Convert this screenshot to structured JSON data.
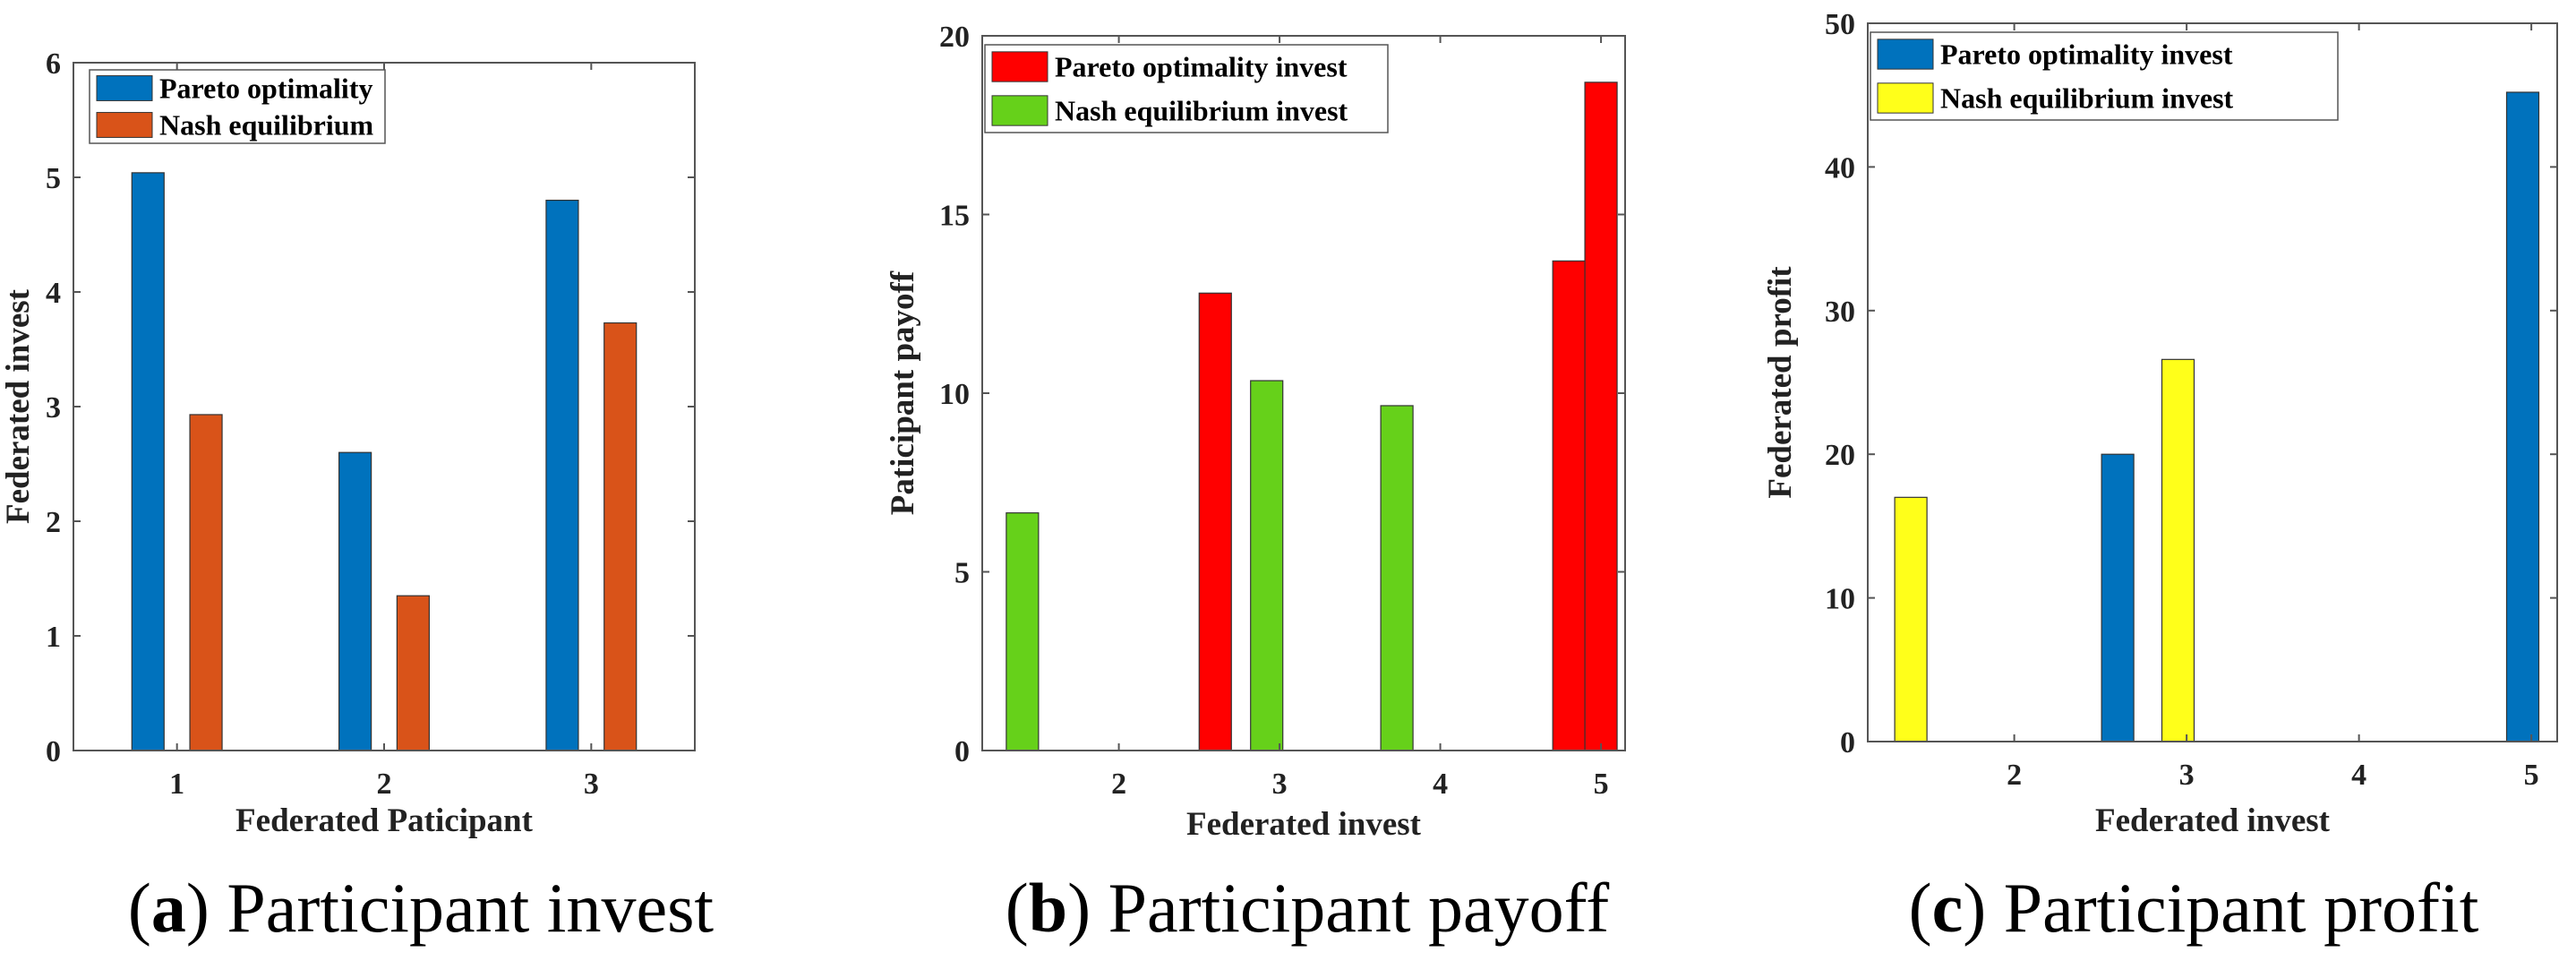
{
  "chart_data": [
    {
      "type": "bar",
      "caption": {
        "open": "(",
        "letter": "a",
        "close": ")",
        "text": " Participant invest"
      },
      "xlabel": "Federated Paticipant",
      "ylabel": "Federated invest",
      "xlim": [
        0.5,
        3.5
      ],
      "ylim": [
        0,
        6
      ],
      "xticks": [
        1,
        2,
        3
      ],
      "yticks": [
        0,
        1,
        2,
        3,
        4,
        5,
        6
      ],
      "grid": false,
      "legend_position": "top-left",
      "series": [
        {
          "name": "Pareto optimality",
          "color": "#0072BD",
          "points": [
            [
              0.86,
              5.04
            ],
            [
              1.86,
              2.6
            ],
            [
              2.86,
              4.8
            ]
          ]
        },
        {
          "name": "Nash equilibrium",
          "color": "#D95319",
          "points": [
            [
              1.14,
              2.93
            ],
            [
              2.14,
              1.35
            ],
            [
              3.14,
              3.73
            ]
          ]
        }
      ]
    },
    {
      "type": "bar",
      "caption": {
        "open": "(",
        "letter": "b",
        "close": ")",
        "text": " Participant payoff"
      },
      "xlabel": "Federated invest",
      "ylabel": "Paticipant payoff",
      "xlim": [
        1.15,
        5.15
      ],
      "ylim": [
        0,
        20
      ],
      "xticks": [
        2,
        3,
        4,
        5
      ],
      "yticks": [
        0,
        5,
        10,
        15,
        20
      ],
      "grid": false,
      "legend_position": "top-left",
      "series": [
        {
          "name": "Pareto optimality invest",
          "color": "#FF0000",
          "points": [
            [
              2.6,
              12.8
            ],
            [
              4.8,
              13.7
            ],
            [
              5.0,
              18.7
            ]
          ]
        },
        {
          "name": "Nash equilibrium invest",
          "color": "#66D11A",
          "points": [
            [
              1.4,
              6.65
            ],
            [
              2.92,
              10.35
            ],
            [
              3.73,
              9.65
            ]
          ]
        }
      ]
    },
    {
      "type": "bar",
      "caption": {
        "open": "(",
        "letter": "c",
        "close": ")",
        "text": " Participant profit"
      },
      "xlabel": "Federated invest",
      "ylabel": "Federated profit",
      "xlim": [
        1.15,
        5.15
      ],
      "ylim": [
        0,
        50
      ],
      "xticks": [
        2,
        3,
        4,
        5
      ],
      "yticks": [
        0,
        10,
        20,
        30,
        40,
        50
      ],
      "grid": false,
      "legend_position": "top-left",
      "series": [
        {
          "name": "Pareto optimality invest",
          "color": "#0072BD",
          "points": [
            [
              2.6,
              20.0
            ],
            [
              4.95,
              45.2
            ]
          ]
        },
        {
          "name": "Nash equilibrium invest",
          "color": "#FFFF1A",
          "points": [
            [
              1.4,
              17.0
            ],
            [
              2.95,
              26.6
            ]
          ]
        }
      ]
    }
  ]
}
